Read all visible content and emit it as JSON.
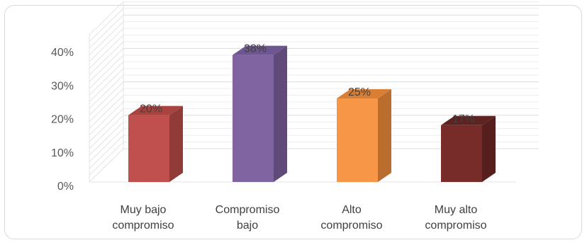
{
  "chart_data": {
    "type": "bar",
    "style": "3d-column",
    "title": "",
    "xlabel": "",
    "ylabel": "",
    "categories": [
      [
        "Muy bajo",
        "compromiso"
      ],
      [
        "Compromiso",
        "bajo"
      ],
      [
        "Alto",
        "compromiso"
      ],
      [
        "Muy alto",
        "compromiso"
      ]
    ],
    "values": [
      20,
      38,
      25,
      17
    ],
    "data_labels": [
      "20%",
      "38%",
      "25%",
      "17%"
    ],
    "yticks": [
      {
        "value": 0,
        "label": "0%"
      },
      {
        "value": 10,
        "label": "10%"
      },
      {
        "value": 20,
        "label": "20%"
      },
      {
        "value": 30,
        "label": "30%"
      },
      {
        "value": 40,
        "label": "40%"
      }
    ],
    "ylim": [
      0,
      40
    ],
    "grid": true,
    "legend": "none",
    "colors": {
      "bars": [
        "#c0504d",
        "#8064a2",
        "#f79646",
        "#772c2a"
      ],
      "sides": [
        "#913b39",
        "#5f4a7a",
        "#b96e30",
        "#561f1e"
      ],
      "tops": [
        "#a8433f",
        "#6e5690",
        "#d97f35",
        "#5e2220"
      ],
      "grid": "#e3e3e3",
      "frame": "#d9d9d9"
    }
  }
}
